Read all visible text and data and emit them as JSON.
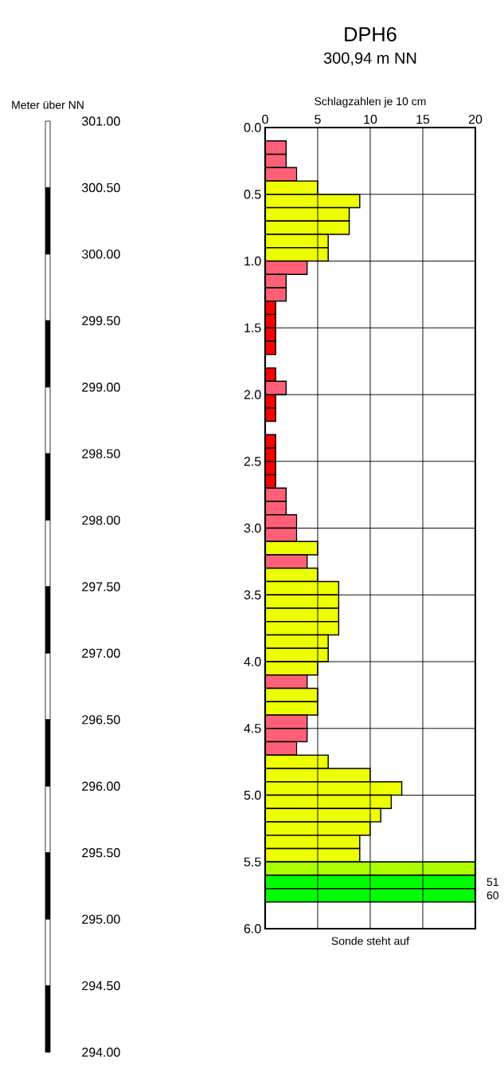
{
  "chart_data": {
    "type": "bar",
    "orientation": "horizontal",
    "title": "DPH6",
    "subtitle": "300,94 m NN",
    "x2label": "Schlagzahlen je 10 cm",
    "y2label": "Meter über NN",
    "annotations": [
      "Sonde steht auf"
    ],
    "x": [
      0.05,
      0.15,
      0.25,
      0.35,
      0.45,
      0.55,
      0.65,
      0.75,
      0.85,
      0.95,
      1.05,
      1.15,
      1.25,
      1.35,
      1.45,
      1.55,
      1.65,
      1.75,
      1.85,
      1.95,
      2.05,
      2.15,
      2.25,
      2.35,
      2.45,
      2.55,
      2.65,
      2.75,
      2.85,
      2.95,
      3.05,
      3.15,
      3.25,
      3.35,
      3.45,
      3.55,
      3.65,
      3.75,
      3.85,
      3.95,
      4.05,
      4.15,
      4.25,
      4.35,
      4.45,
      4.55,
      4.65,
      4.75,
      4.85,
      4.95,
      5.05,
      5.15,
      5.25,
      5.35,
      5.45,
      5.55
    ],
    "series": [
      {
        "axis": "x2",
        "values": [
          0,
          2,
          2,
          3,
          5,
          9,
          8,
          8,
          6,
          6,
          4,
          2,
          2,
          1,
          1,
          1,
          1,
          0,
          1,
          2,
          1,
          1,
          0,
          1,
          1,
          1,
          1,
          2,
          2,
          3,
          3,
          5,
          4,
          5,
          7,
          7,
          7,
          7,
          6,
          6,
          5,
          4,
          5,
          5,
          4,
          4,
          3,
          6,
          10,
          13,
          12,
          11,
          10,
          9,
          9,
          20
        ]
      }
    ],
    "bands": [
      {
        "axis": "y",
        "from": 5.6,
        "to": 5.7,
        "label": "51",
        "color": "#00ff00"
      },
      {
        "axis": "y",
        "from": 5.7,
        "to": 5.8,
        "label": "60",
        "color": "#00ff00"
      }
    ],
    "colors": [
      "#ff6078",
      "#ff6078",
      "#ff6078",
      "#ff6078",
      "#eeff00",
      "#eeff00",
      "#eeff00",
      "#eeff00",
      "#eeff00",
      "#eeff00",
      "#ff6078",
      "#ff6078",
      "#ff6078",
      "#ff0000",
      "#ff0000",
      "#ff0000",
      "#ff0000",
      "#ff0000",
      "#ff0000",
      "#ff6078",
      "#ff0000",
      "#ff0000",
      "#ff0000",
      "#ff0000",
      "#ff0000",
      "#ff0000",
      "#ff0000",
      "#ff6078",
      "#ff6078",
      "#ff6078",
      "#ff6078",
      "#eeff00",
      "#ff6078",
      "#eeff00",
      "#eeff00",
      "#eeff00",
      "#eeff00",
      "#eeff00",
      "#eeff00",
      "#eeff00",
      "#eeff00",
      "#ff6078",
      "#eeff00",
      "#eeff00",
      "#ff6078",
      "#ff6078",
      "#ff6078",
      "#eeff00",
      "#eeff00",
      "#eeff00",
      "#eeff00",
      "#eeff00",
      "#eeff00",
      "#eeff00",
      "#eeff00",
      "#aaff00"
    ],
    "x2lim": [
      0,
      20
    ],
    "x2ticks": [
      {
        "value": 0,
        "label": "0"
      },
      {
        "value": 5,
        "label": "5"
      },
      {
        "value": 10,
        "label": "10"
      },
      {
        "value": 15,
        "label": "15"
      },
      {
        "value": 20,
        "label": "20"
      }
    ],
    "ylim": [
      6,
      0
    ],
    "yticks": [
      {
        "value": 0,
        "label": "0.0"
      },
      {
        "value": 0.5,
        "label": "0.5"
      },
      {
        "value": 1,
        "label": "1.0"
      },
      {
        "value": 1.5,
        "label": "1.5"
      },
      {
        "value": 2,
        "label": "2.0"
      },
      {
        "value": 2.5,
        "label": "2.5"
      },
      {
        "value": 3,
        "label": "3.0"
      },
      {
        "value": 3.5,
        "label": "3.5"
      },
      {
        "value": 4,
        "label": "4.0"
      },
      {
        "value": 4.5,
        "label": "4.5"
      },
      {
        "value": 5,
        "label": "5.0"
      },
      {
        "value": 5.5,
        "label": "5.5"
      },
      {
        "value": 6,
        "label": "6.0"
      }
    ],
    "y2lim": [
      294,
      301
    ],
    "y2ticks": [
      {
        "value": 301,
        "label": "301.00"
      },
      {
        "value": 300.5,
        "label": "300.50"
      },
      {
        "value": 300,
        "label": "300.00"
      },
      {
        "value": 299.5,
        "label": "299.50"
      },
      {
        "value": 299,
        "label": "299.00"
      },
      {
        "value": 298.5,
        "label": "298.50"
      },
      {
        "value": 298,
        "label": "298.00"
      },
      {
        "value": 297.5,
        "label": "297.50"
      },
      {
        "value": 297,
        "label": "297.00"
      },
      {
        "value": 296.5,
        "label": "296.50"
      },
      {
        "value": 296,
        "label": "296.00"
      },
      {
        "value": 295.5,
        "label": "295.50"
      },
      {
        "value": 295,
        "label": "295.00"
      },
      {
        "value": 294.5,
        "label": "294.50"
      },
      {
        "value": 294,
        "label": "294.00"
      }
    ],
    "grid": true
  }
}
